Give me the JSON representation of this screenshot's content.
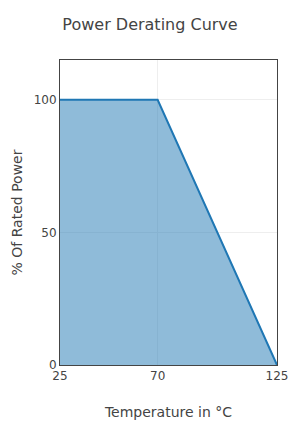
{
  "chart_data": {
    "type": "area",
    "title": "Power Derating Curve",
    "x": [
      25,
      70,
      125
    ],
    "values": [
      100,
      100,
      0
    ],
    "xlabel": "Temperature in °C",
    "ylabel": "% Of Rated Power",
    "xlim": [
      25,
      125
    ],
    "ylim": [
      0,
      115
    ],
    "xticks": [
      25,
      70,
      125
    ],
    "yticks": [
      0,
      50,
      100
    ],
    "grid": true
  }
}
